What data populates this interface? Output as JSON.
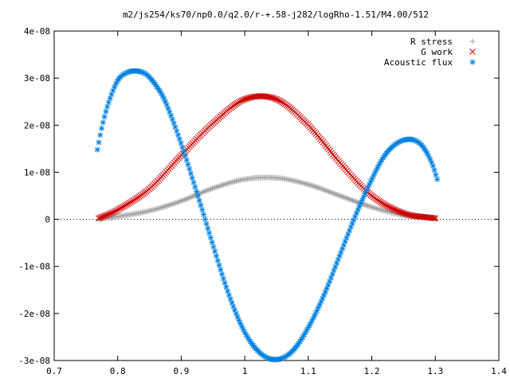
{
  "chart_data": {
    "type": "scatter",
    "title": "m2/js254/ks70/np0.0/q2.0/r-+.58-j282/logRho-1.51/M4.00/512",
    "xlabel": "",
    "ylabel": "",
    "xlim": [
      0.7,
      1.4
    ],
    "ylim": [
      -3e-08,
      4e-08
    ],
    "x_ticks": [
      0.7,
      0.8,
      0.9,
      1.0,
      1.1,
      1.2,
      1.3,
      1.4
    ],
    "x_tick_labels": [
      "0.7",
      "0.8",
      "0.9",
      "1",
      "1.1",
      "1.2",
      "1.3",
      "1.4"
    ],
    "y_ticks": [
      -3e-08,
      -2e-08,
      -1e-08,
      0,
      1e-08,
      2e-08,
      3e-08,
      4e-08
    ],
    "y_tick_labels": [
      "-3e-08",
      "-2e-08",
      "-1e-08",
      "0",
      "1e-08",
      "2e-08",
      "3e-08",
      "4e-08"
    ],
    "grid": false,
    "legend_position": "top-right",
    "series": [
      {
        "name": "R stress",
        "marker": "plus",
        "color": "#a0a0a0",
        "x": [
          0.77,
          0.8,
          0.85,
          0.9,
          0.95,
          1.0,
          1.05,
          1.1,
          1.15,
          1.2,
          1.25,
          1.3
        ],
        "y": [
          0,
          6e-10,
          1.8e-09,
          3.9e-09,
          6.6e-09,
          8.5e-09,
          8.8e-09,
          7.4e-09,
          5e-09,
          2.6e-09,
          9e-10,
          2e-10
        ]
      },
      {
        "name": "G work",
        "marker": "cross",
        "color": "#cc0000",
        "x": [
          0.77,
          0.8,
          0.85,
          0.9,
          0.95,
          1.0,
          1.05,
          1.1,
          1.15,
          1.2,
          1.25,
          1.3
        ],
        "y": [
          2e-10,
          2e-09,
          6.5e-09,
          1.36e-08,
          2.04e-08,
          2.55e-08,
          2.55e-08,
          2e-08,
          1.2e-08,
          5e-09,
          1.3e-09,
          2e-10
        ]
      },
      {
        "name": "Acoustic flux",
        "marker": "star",
        "color": "#0080e0",
        "x": [
          0.768,
          0.775,
          0.785,
          0.8,
          0.815,
          0.83,
          0.845,
          0.86,
          0.875,
          0.9,
          0.925,
          0.95,
          0.975,
          1.0,
          1.025,
          1.05,
          1.075,
          1.1,
          1.125,
          1.15,
          1.175,
          1.2,
          1.22,
          1.24,
          1.26,
          1.275,
          1.285,
          1.295,
          1.303
        ],
        "y": [
          1.48e-08,
          1.95e-08,
          2.45e-08,
          2.95e-08,
          3.12e-08,
          3.15e-08,
          3.08e-08,
          2.85e-08,
          2.5e-08,
          1.6e-08,
          5.5e-09,
          -5.5e-09,
          -1.6e-08,
          -2.4e-08,
          -2.85e-08,
          -2.98e-08,
          -2.8e-08,
          -2.3e-08,
          -1.6e-08,
          -7.5e-09,
          1e-09,
          8.5e-09,
          1.35e-08,
          1.62e-08,
          1.7e-08,
          1.62e-08,
          1.45e-08,
          1.18e-08,
          8.5e-09
        ]
      }
    ]
  }
}
